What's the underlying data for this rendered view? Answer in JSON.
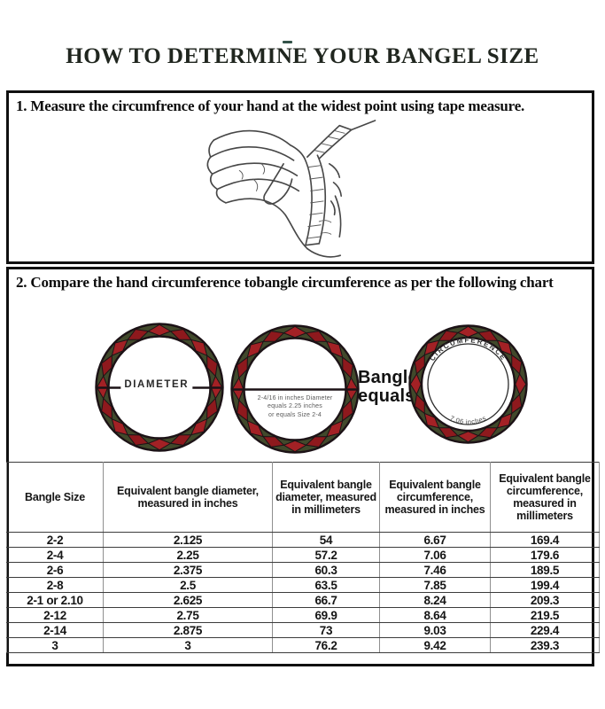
{
  "title": "HOW TO DETERMINE YOUR BANGEL SIZE",
  "steps": {
    "step1": "1. Measure the circumfrence of your hand at the widest point using tape measure.",
    "step2": "2. Compare the hand circumference tobangle circumference as per the following chart"
  },
  "diagram": {
    "bangle1": {
      "label": "DIAMETER"
    },
    "bangle2": {
      "note_line1": "2-4/16 in inches Diameter",
      "note_line2": "equals 2.25 inches",
      "note_line3": "or equals Size 2-4"
    },
    "equals_line1": "Bangle",
    "equals_line2": "equals",
    "bangle3": {
      "top_label": "CIRCUMFERENCE",
      "bottom_label": "7.06 inches"
    }
  },
  "table": {
    "columns": [
      "Bangle Size",
      "Equivalent bangle diameter, measured in inches",
      "Equivalent bangle diameter, measured in millimeters",
      "Equivalent bangle circumference, measured in inches",
      "Equivalent bangle circumference, measured in millimeters"
    ],
    "rows": [
      [
        "2-2",
        "2.125",
        "54",
        "6.67",
        "169.4"
      ],
      [
        "2-4",
        "2.25",
        "57.2",
        "7.06",
        "179.6"
      ],
      [
        "2-6",
        "2.375",
        "60.3",
        "7.46",
        "189.5"
      ],
      [
        "2-8",
        "2.5",
        "63.5",
        "7.85",
        "199.4"
      ],
      [
        "2-1 or 2.10",
        "2.625",
        "66.7",
        "8.24",
        "209.3"
      ],
      [
        "2-12",
        "2.75",
        "69.9",
        "8.64",
        "219.5"
      ],
      [
        "2-14",
        "2.875",
        "73",
        "9.03",
        "229.4"
      ],
      [
        "3",
        "3",
        "76.2",
        "9.42",
        "239.3"
      ]
    ]
  },
  "colors": {
    "bangle_red": "#a32125",
    "bangle_red_alt": "#8e191d",
    "bangle_green": "#41492b",
    "outline": "#1c1216",
    "accent_dash": "#335249"
  }
}
